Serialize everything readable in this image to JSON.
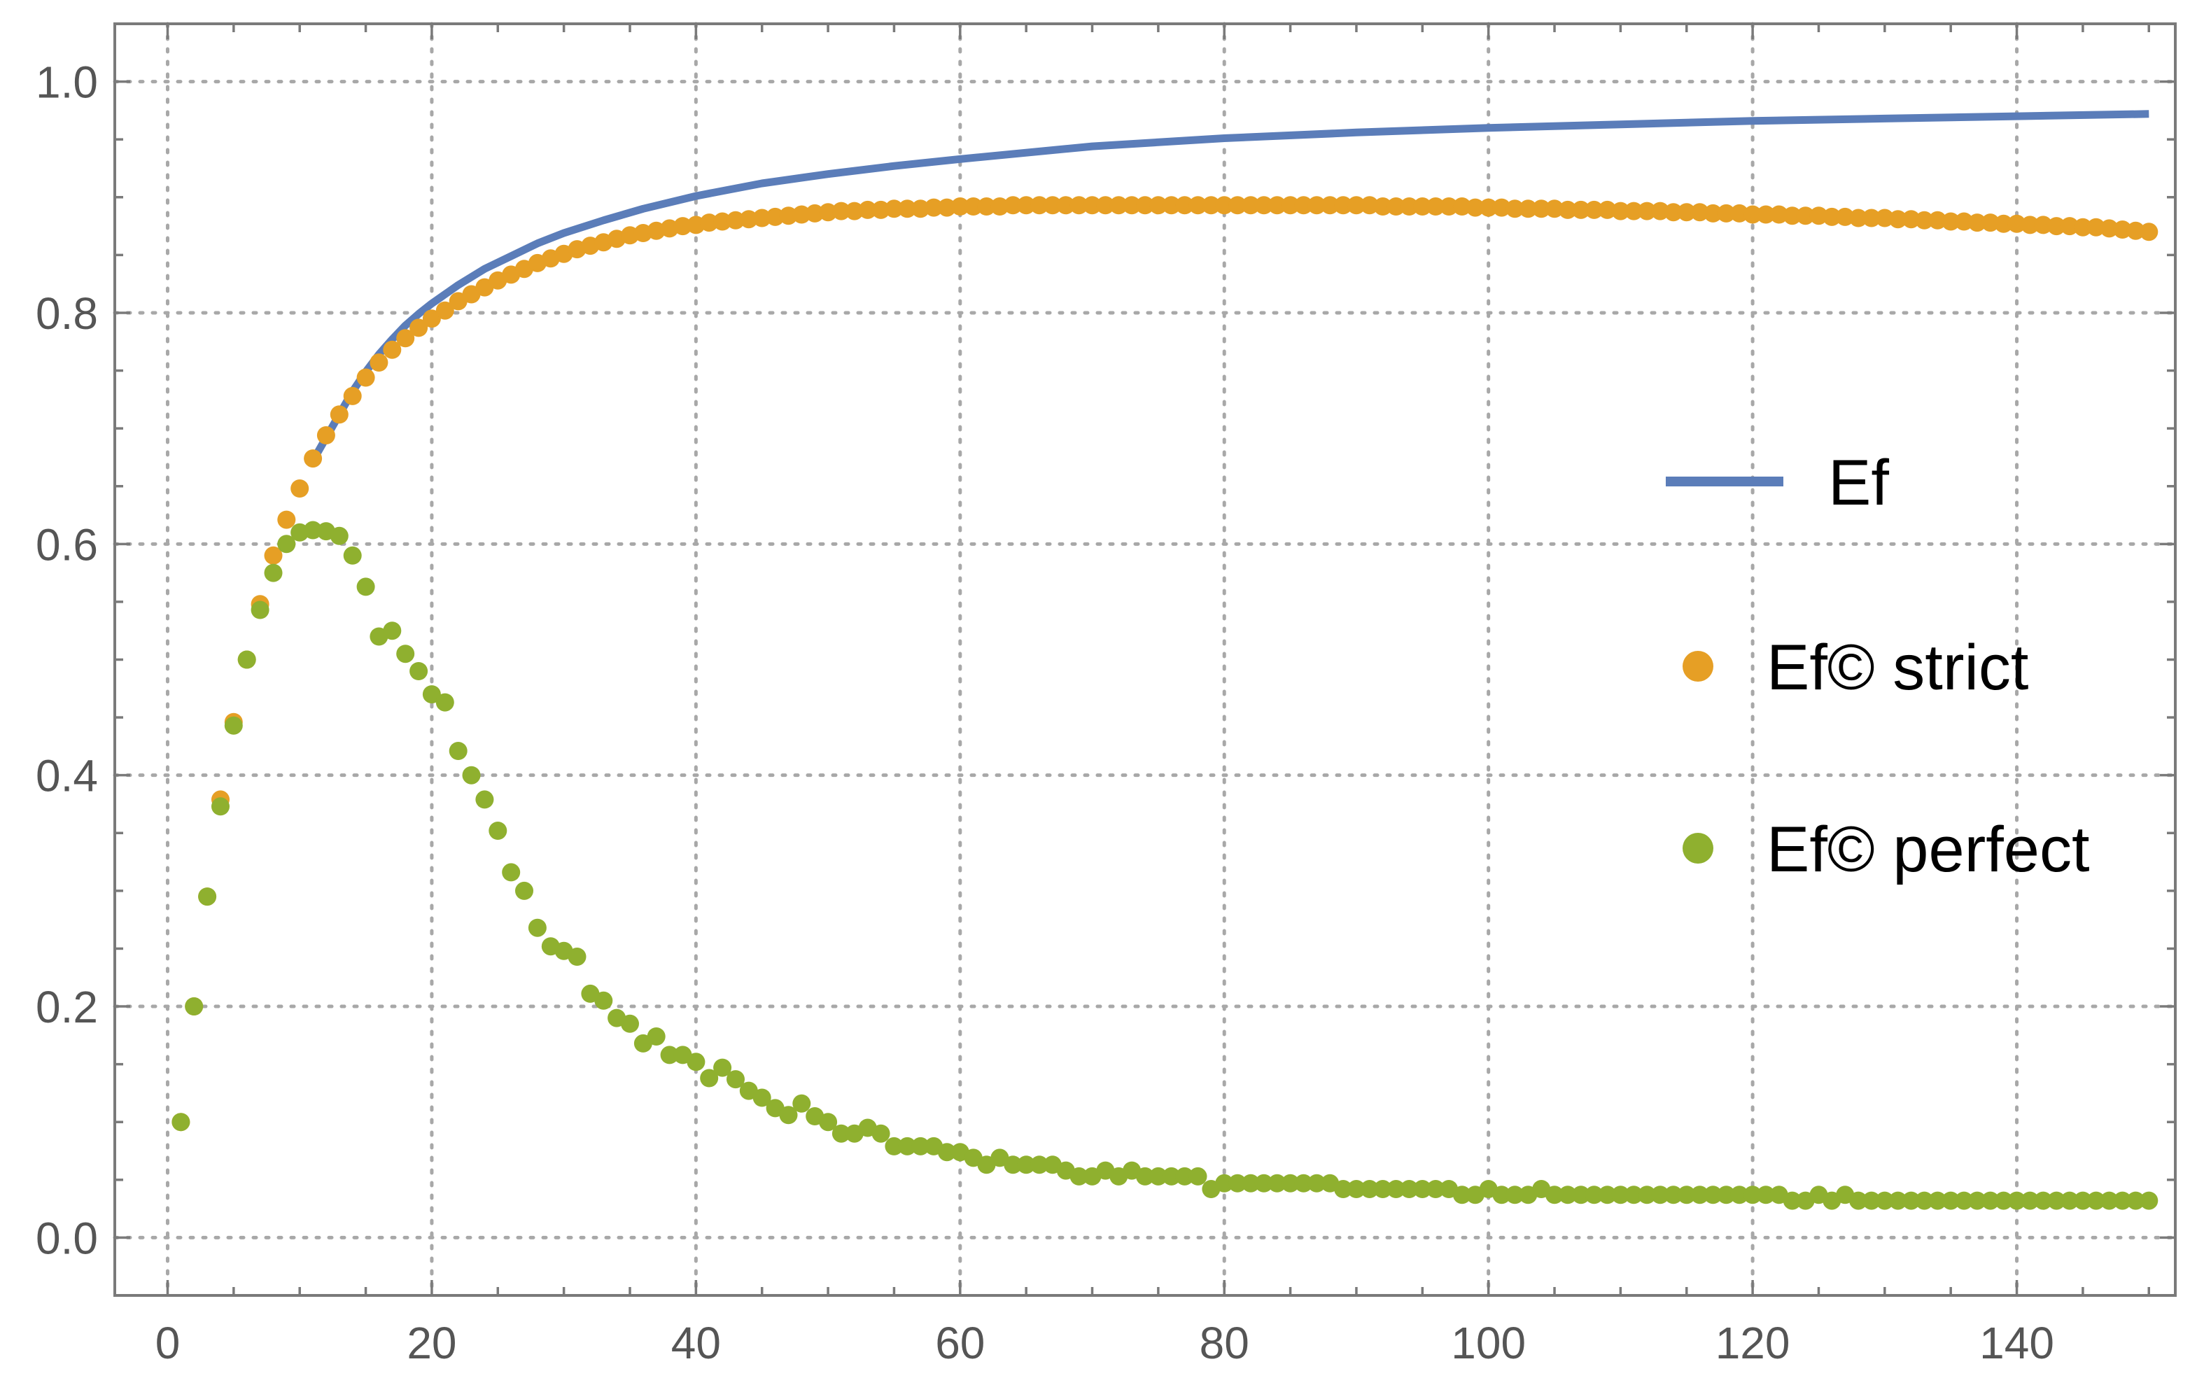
{
  "chart_data": {
    "type": "scatter",
    "title": "",
    "xlabel": "",
    "ylabel": "",
    "xlim": [
      -4,
      152
    ],
    "ylim": [
      -0.05,
      1.05
    ],
    "xticks": [
      0,
      20,
      40,
      60,
      80,
      100,
      120,
      140
    ],
    "xtick_labels": [
      "0",
      "20",
      "40",
      "60",
      "80",
      "100",
      "120",
      "140"
    ],
    "yticks": [
      0.0,
      0.2,
      0.4,
      0.6,
      0.8,
      1.0
    ],
    "ytick_labels": [
      "0.0",
      "0.2",
      "0.4",
      "0.6",
      "0.8",
      "1.0"
    ],
    "grid": true,
    "grid_style": "dotted",
    "legend_placement": "right",
    "series": [
      {
        "name": "Ef",
        "kind": "line",
        "color": "#5b7db9",
        "x": [
          11,
          12,
          13,
          14,
          15,
          16,
          17,
          18,
          19,
          20,
          22,
          24,
          26,
          28,
          30,
          33,
          36,
          40,
          45,
          50,
          55,
          60,
          70,
          80,
          90,
          100,
          110,
          120,
          130,
          140,
          150
        ],
        "y": [
          0.672,
          0.692,
          0.712,
          0.732,
          0.749,
          0.764,
          0.777,
          0.789,
          0.799,
          0.808,
          0.824,
          0.838,
          0.849,
          0.86,
          0.869,
          0.88,
          0.89,
          0.901,
          0.912,
          0.92,
          0.927,
          0.933,
          0.944,
          0.951,
          0.956,
          0.96,
          0.963,
          0.966,
          0.968,
          0.97,
          0.972
        ]
      },
      {
        "name": "Ef© strict",
        "kind": "scatter",
        "color": "#e69f25",
        "x": [
          1,
          2,
          3,
          4,
          5,
          6,
          7,
          8,
          9,
          10,
          11,
          12,
          13,
          14,
          15,
          16,
          17,
          18,
          19,
          20,
          21,
          22,
          23,
          24,
          25,
          26,
          27,
          28,
          29,
          30,
          31,
          32,
          33,
          34,
          35,
          36,
          37,
          38,
          39,
          40,
          41,
          42,
          43,
          44,
          45,
          46,
          47,
          48,
          49,
          50,
          51,
          52,
          53,
          54,
          55,
          56,
          57,
          58,
          59,
          60,
          61,
          62,
          63,
          64,
          65,
          66,
          67,
          68,
          69,
          70,
          71,
          72,
          73,
          74,
          75,
          76,
          77,
          78,
          79,
          80,
          81,
          82,
          83,
          84,
          85,
          86,
          87,
          88,
          89,
          90,
          91,
          92,
          93,
          94,
          95,
          96,
          97,
          98,
          99,
          100,
          101,
          102,
          103,
          104,
          105,
          106,
          107,
          108,
          109,
          110,
          111,
          112,
          113,
          114,
          115,
          116,
          117,
          118,
          119,
          120,
          121,
          122,
          123,
          124,
          125,
          126,
          127,
          128,
          129,
          130,
          131,
          132,
          133,
          134,
          135,
          136,
          137,
          138,
          139,
          140,
          141,
          142,
          143,
          144,
          145,
          146,
          147,
          148,
          149,
          150
        ],
        "y": [
          0.1,
          0.2,
          0.295,
          0.379,
          0.446,
          0.5,
          0.548,
          0.59,
          0.621,
          0.648,
          0.674,
          0.694,
          0.712,
          0.728,
          0.744,
          0.757,
          0.768,
          0.778,
          0.787,
          0.795,
          0.802,
          0.81,
          0.816,
          0.822,
          0.828,
          0.833,
          0.838,
          0.843,
          0.847,
          0.851,
          0.855,
          0.858,
          0.861,
          0.864,
          0.867,
          0.869,
          0.871,
          0.873,
          0.875,
          0.876,
          0.878,
          0.879,
          0.88,
          0.881,
          0.882,
          0.883,
          0.884,
          0.885,
          0.886,
          0.887,
          0.888,
          0.888,
          0.889,
          0.889,
          0.89,
          0.89,
          0.89,
          0.891,
          0.891,
          0.892,
          0.892,
          0.892,
          0.892,
          0.893,
          0.893,
          0.893,
          0.893,
          0.893,
          0.893,
          0.893,
          0.893,
          0.893,
          0.893,
          0.893,
          0.893,
          0.893,
          0.893,
          0.893,
          0.893,
          0.893,
          0.893,
          0.893,
          0.893,
          0.893,
          0.893,
          0.893,
          0.893,
          0.893,
          0.893,
          0.893,
          0.893,
          0.892,
          0.892,
          0.892,
          0.892,
          0.892,
          0.892,
          0.892,
          0.891,
          0.891,
          0.891,
          0.89,
          0.89,
          0.89,
          0.89,
          0.889,
          0.889,
          0.889,
          0.889,
          0.888,
          0.888,
          0.888,
          0.888,
          0.887,
          0.887,
          0.887,
          0.886,
          0.886,
          0.886,
          0.885,
          0.885,
          0.885,
          0.884,
          0.884,
          0.884,
          0.883,
          0.883,
          0.882,
          0.882,
          0.882,
          0.881,
          0.881,
          0.88,
          0.88,
          0.879,
          0.879,
          0.878,
          0.878,
          0.877,
          0.877,
          0.876,
          0.876,
          0.875,
          0.875,
          0.874,
          0.874,
          0.873,
          0.872,
          0.871,
          0.87
        ]
      },
      {
        "name": "Ef© perfect",
        "kind": "scatter",
        "color": "#8fb02f",
        "x": [
          1,
          2,
          3,
          4,
          5,
          6,
          7,
          8,
          9,
          10,
          11,
          12,
          13,
          14,
          15,
          16,
          17,
          18,
          19,
          20,
          21,
          22,
          23,
          24,
          25,
          26,
          27,
          28,
          29,
          30,
          31,
          32,
          33,
          34,
          35,
          36,
          37,
          38,
          39,
          40,
          41,
          42,
          43,
          44,
          45,
          46,
          47,
          48,
          49,
          50,
          51,
          52,
          53,
          54,
          55,
          56,
          57,
          58,
          59,
          60,
          61,
          62,
          63,
          64,
          65,
          66,
          67,
          68,
          69,
          70,
          71,
          72,
          73,
          74,
          75,
          76,
          77,
          78,
          79,
          80,
          81,
          82,
          83,
          84,
          85,
          86,
          87,
          88,
          89,
          90,
          91,
          92,
          93,
          94,
          95,
          96,
          97,
          98,
          99,
          100,
          101,
          102,
          103,
          104,
          105,
          106,
          107,
          108,
          109,
          110,
          111,
          112,
          113,
          114,
          115,
          116,
          117,
          118,
          119,
          120,
          121,
          122,
          123,
          124,
          125,
          126,
          127,
          128,
          129,
          130,
          131,
          132,
          133,
          134,
          135,
          136,
          137,
          138,
          139,
          140,
          141,
          142,
          143,
          144,
          145,
          146,
          147,
          148,
          149,
          150
        ],
        "y": [
          0.1,
          0.2,
          0.295,
          0.373,
          0.443,
          0.5,
          0.543,
          0.575,
          0.6,
          0.61,
          0.612,
          0.611,
          0.607,
          0.59,
          0.563,
          0.52,
          0.525,
          0.505,
          0.49,
          0.47,
          0.463,
          0.421,
          0.4,
          0.379,
          0.352,
          0.316,
          0.3,
          0.268,
          0.252,
          0.248,
          0.243,
          0.211,
          0.205,
          0.19,
          0.185,
          0.168,
          0.174,
          0.158,
          0.158,
          0.152,
          0.138,
          0.147,
          0.137,
          0.127,
          0.121,
          0.112,
          0.106,
          0.116,
          0.105,
          0.1,
          0.09,
          0.09,
          0.095,
          0.09,
          0.079,
          0.079,
          0.079,
          0.079,
          0.074,
          0.074,
          0.069,
          0.063,
          0.069,
          0.063,
          0.063,
          0.063,
          0.063,
          0.058,
          0.053,
          0.053,
          0.058,
          0.053,
          0.058,
          0.053,
          0.053,
          0.053,
          0.053,
          0.053,
          0.042,
          0.047,
          0.047,
          0.047,
          0.047,
          0.047,
          0.047,
          0.047,
          0.047,
          0.047,
          0.042,
          0.042,
          0.042,
          0.042,
          0.042,
          0.042,
          0.042,
          0.042,
          0.042,
          0.037,
          0.037,
          0.042,
          0.037,
          0.037,
          0.037,
          0.042,
          0.037,
          0.037,
          0.037,
          0.037,
          0.037,
          0.037,
          0.037,
          0.037,
          0.037,
          0.037,
          0.037,
          0.037,
          0.037,
          0.037,
          0.037,
          0.037,
          0.037,
          0.037,
          0.032,
          0.032,
          0.037,
          0.032,
          0.037,
          0.032,
          0.032,
          0.032,
          0.032,
          0.032,
          0.032,
          0.032,
          0.032,
          0.032,
          0.032,
          0.032,
          0.032,
          0.032,
          0.032,
          0.032,
          0.032,
          0.032,
          0.032,
          0.032,
          0.032,
          0.032,
          0.032,
          0.032
        ]
      }
    ]
  }
}
